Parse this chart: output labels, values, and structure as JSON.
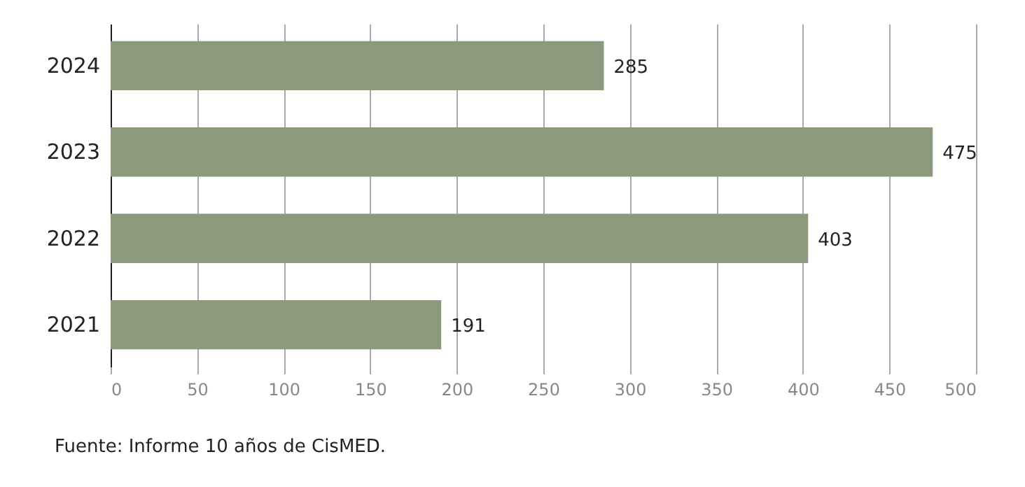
{
  "chart_data": {
    "type": "bar",
    "orientation": "horizontal",
    "categories": [
      "2024",
      "2023",
      "2022",
      "2021"
    ],
    "values": [
      285,
      475,
      403,
      191
    ],
    "color": "#8b9a7c",
    "xlim": [
      0,
      500
    ],
    "xticks": [
      0,
      50,
      100,
      150,
      200,
      250,
      300,
      350,
      400,
      450,
      500
    ],
    "grid": "x",
    "data_labels": true,
    "annotations": [
      "Fuente: Informe 10 años de CisMED."
    ]
  }
}
